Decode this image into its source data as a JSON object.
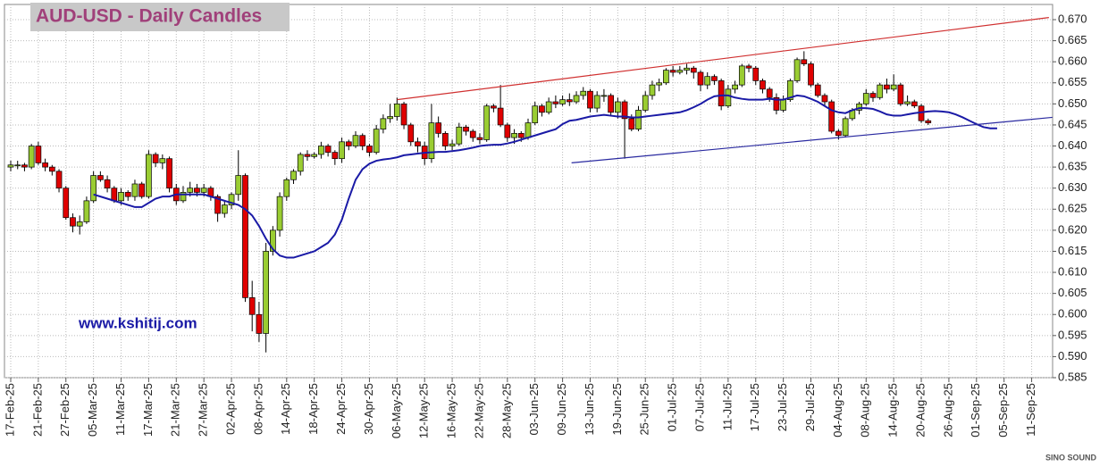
{
  "chart_data": {
    "type": "candlestick",
    "title": "AUD-USD - Daily Candles",
    "annotation": "www.kshitij.com",
    "watermark": "SINO SOUND",
    "grid": true,
    "up_color": "#9acd32",
    "down_color": "#e00000",
    "ylim": [
      0.585,
      0.67
    ],
    "yticks": [
      0.585,
      {
        "value": 0.59,
        "label": "0.590"
      },
      0.595,
      {
        "value": 0.6,
        "label": "0.600"
      },
      0.605,
      {
        "value": 0.61,
        "label": "0.610"
      },
      0.615,
      {
        "value": 0.62,
        "label": "0.620"
      },
      0.625,
      {
        "value": 0.63,
        "label": "0.630"
      },
      0.635,
      {
        "value": 0.64,
        "label": "0.640"
      },
      0.645,
      {
        "value": 0.65,
        "label": "0.650"
      },
      0.655,
      {
        "value": 0.66,
        "label": "0.660"
      },
      0.665,
      {
        "value": 0.67,
        "label": "0.670"
      }
    ],
    "categories": [
      "17-Feb-25",
      null,
      null,
      null,
      "21-Feb-25",
      null,
      null,
      null,
      "27-Feb-25",
      null,
      null,
      null,
      "05-Mar-25",
      null,
      null,
      null,
      "11-Mar-25",
      null,
      null,
      null,
      "17-Mar-25",
      null,
      null,
      null,
      "21-Mar-25",
      null,
      null,
      null,
      "27-Mar-25",
      null,
      null,
      null,
      "02-Apr-25",
      null,
      null,
      null,
      "08-Apr-25",
      null,
      null,
      null,
      "14-Apr-25",
      null,
      null,
      null,
      "18-Apr-25",
      null,
      null,
      null,
      "24-Apr-25",
      null,
      null,
      null,
      "30-Apr-25",
      null,
      null,
      null,
      "06-May-25",
      null,
      null,
      null,
      "12-May-25",
      null,
      null,
      null,
      "16-May-25",
      null,
      null,
      null,
      "22-May-25",
      null,
      null,
      null,
      "28-May-25",
      null,
      null,
      null,
      "03-Jun-25",
      null,
      null,
      null,
      "09-Jun-25",
      null,
      null,
      null,
      "13-Jun-25",
      null,
      null,
      null,
      "19-Jun-25",
      null,
      null,
      null,
      "25-Jun-25",
      null,
      null,
      null,
      "01-Jul-25",
      null,
      null,
      null,
      "07-Jul-25",
      null,
      null,
      null,
      "11-Jul-25",
      null,
      null,
      null,
      "17-Jul-25",
      null,
      null,
      null,
      "23-Jul-25",
      null,
      null,
      null,
      "29-Jul-25",
      null,
      null,
      null,
      "04-Aug-25",
      null,
      null,
      null,
      "08-Aug-25",
      null,
      null,
      null,
      "14-Aug-25",
      null,
      null,
      null,
      "20-Aug-25",
      null,
      null,
      null,
      "26-Aug-25",
      null,
      null,
      null,
      "01-Sep-25",
      null,
      null,
      null,
      "05-Sep-25",
      null,
      null,
      null,
      "11-Sep-25"
    ],
    "open": [
      0.635,
      0.6355,
      0.6355,
      0.635,
      0.64,
      0.636,
      0.635,
      0.634,
      0.63,
      0.623,
      0.621,
      0.622,
      0.627,
      0.633,
      0.632,
      0.63,
      0.627,
      0.629,
      0.628,
      0.631,
      0.628,
      0.638,
      0.636,
      0.637,
      0.63,
      0.627,
      0.629,
      0.63,
      0.629,
      0.63,
      0.628,
      0.624,
      0.626,
      0.6285,
      0.633,
      0.604,
      0.6,
      0.5955,
      0.615,
      0.62,
      0.628,
      0.632,
      0.634,
      0.638,
      0.6375,
      0.638,
      0.64,
      0.6385,
      0.637,
      0.641,
      0.64,
      0.6425,
      0.64,
      0.6385,
      0.644,
      0.6465,
      0.647,
      0.65,
      0.645,
      0.641,
      0.64,
      0.637,
      0.6455,
      0.643,
      0.64,
      0.6405,
      0.6445,
      0.6435,
      0.642,
      0.6415,
      0.6495,
      0.649,
      0.645,
      0.642,
      0.643,
      0.642,
      0.6455,
      0.6495,
      0.648,
      0.6505,
      0.65,
      0.651,
      0.6505,
      0.652,
      0.653,
      0.649,
      0.652,
      0.652,
      0.648,
      0.6505,
      0.6465,
      0.644,
      0.6485,
      0.652,
      0.6545,
      0.655,
      0.658,
      0.6575,
      0.658,
      0.6585,
      0.6575,
      0.6545,
      0.6565,
      0.6555,
      0.6495,
      0.6535,
      0.6545,
      0.659,
      0.6585,
      0.6555,
      0.6535,
      0.6515,
      0.6485,
      0.651,
      0.6555,
      0.6605,
      0.6595,
      0.6545,
      0.652,
      0.6505,
      0.6435,
      0.6425,
      0.6465,
      0.6485,
      0.65,
      0.6525,
      0.6515,
      0.6545,
      0.6535,
      0.6545,
      0.65,
      0.6505,
      0.6495,
      0.646,
      null,
      null,
      null,
      null,
      null,
      null,
      null,
      null,
      null,
      null,
      null,
      null,
      null,
      null,
      null
    ],
    "high": [
      0.6365,
      0.6365,
      0.636,
      0.6405,
      0.641,
      0.637,
      0.6355,
      0.6345,
      0.6305,
      0.624,
      0.6235,
      0.628,
      0.634,
      0.634,
      0.633,
      0.6305,
      0.63,
      0.6295,
      0.632,
      0.6315,
      0.639,
      0.6385,
      0.638,
      0.6375,
      0.631,
      0.6305,
      0.6315,
      0.631,
      0.631,
      0.6305,
      0.6285,
      0.627,
      0.629,
      0.639,
      0.6335,
      0.608,
      0.603,
      0.617,
      0.621,
      0.629,
      0.6325,
      0.6345,
      0.6385,
      0.639,
      0.6385,
      0.641,
      0.6405,
      0.639,
      0.642,
      0.6415,
      0.6435,
      0.643,
      0.6405,
      0.645,
      0.6475,
      0.65,
      0.6515,
      0.6505,
      0.6455,
      0.642,
      0.641,
      0.65,
      0.647,
      0.6435,
      0.6415,
      0.6455,
      0.645,
      0.644,
      0.643,
      0.65,
      0.65,
      0.6545,
      0.6455,
      0.644,
      0.6435,
      0.6465,
      0.6505,
      0.65,
      0.6515,
      0.652,
      0.652,
      0.6525,
      0.653,
      0.654,
      0.6535,
      0.653,
      0.6535,
      0.6525,
      0.6515,
      0.651,
      0.6475,
      0.6495,
      0.653,
      0.6555,
      0.656,
      0.6585,
      0.659,
      0.659,
      0.6595,
      0.659,
      0.658,
      0.6575,
      0.657,
      0.656,
      0.6545,
      0.6555,
      0.6595,
      0.6595,
      0.659,
      0.656,
      0.654,
      0.6525,
      0.652,
      0.656,
      0.661,
      0.6625,
      0.66,
      0.655,
      0.6525,
      0.651,
      0.644,
      0.647,
      0.649,
      0.6505,
      0.6535,
      0.653,
      0.655,
      0.656,
      0.657,
      0.655,
      0.652,
      0.651,
      0.65,
      0.6465,
      null,
      null,
      null,
      null,
      null,
      null,
      null,
      null,
      null,
      null,
      null,
      null,
      null,
      null,
      null
    ],
    "low": [
      0.634,
      0.6345,
      0.634,
      0.6345,
      0.6355,
      0.634,
      0.633,
      0.629,
      0.6225,
      0.6195,
      0.619,
      0.6215,
      0.6265,
      0.6315,
      0.629,
      0.6265,
      0.626,
      0.627,
      0.627,
      0.6275,
      0.6275,
      0.635,
      0.6345,
      0.629,
      0.626,
      0.6265,
      0.628,
      0.628,
      0.628,
      0.627,
      0.622,
      0.623,
      0.625,
      0.627,
      0.603,
      0.596,
      0.5935,
      0.591,
      0.614,
      0.6185,
      0.627,
      0.631,
      0.633,
      0.6365,
      0.637,
      0.637,
      0.6375,
      0.6355,
      0.636,
      0.639,
      0.6395,
      0.639,
      0.6375,
      0.638,
      0.643,
      0.6455,
      0.646,
      0.644,
      0.64,
      0.6385,
      0.6355,
      0.636,
      0.642,
      0.639,
      0.639,
      0.64,
      0.6425,
      0.641,
      0.6405,
      0.641,
      0.648,
      0.6445,
      0.641,
      0.6405,
      0.641,
      0.6415,
      0.645,
      0.647,
      0.6475,
      0.649,
      0.6495,
      0.6495,
      0.65,
      0.651,
      0.648,
      0.648,
      0.6505,
      0.647,
      0.6465,
      0.637,
      0.6435,
      0.6435,
      0.648,
      0.651,
      0.653,
      0.6545,
      0.6565,
      0.657,
      0.657,
      0.656,
      0.653,
      0.6535,
      0.6545,
      0.6485,
      0.649,
      0.6525,
      0.654,
      0.6575,
      0.6545,
      0.6525,
      0.6505,
      0.6475,
      0.648,
      0.6505,
      0.655,
      0.659,
      0.654,
      0.6515,
      0.6495,
      0.643,
      0.6415,
      0.642,
      0.646,
      0.6475,
      0.6495,
      0.6505,
      0.651,
      0.6525,
      0.653,
      0.6495,
      0.6495,
      0.649,
      0.6455,
      0.645,
      null,
      null,
      null,
      null,
      null,
      null,
      null,
      null,
      null,
      null,
      null,
      null,
      null,
      null,
      null
    ],
    "close": [
      0.6355,
      0.6355,
      0.635,
      0.64,
      0.636,
      0.635,
      0.634,
      0.63,
      0.623,
      0.621,
      0.622,
      0.627,
      0.633,
      0.632,
      0.63,
      0.627,
      0.629,
      0.628,
      0.631,
      0.628,
      0.638,
      0.636,
      0.637,
      0.63,
      0.627,
      0.629,
      0.63,
      0.629,
      0.63,
      0.628,
      0.624,
      0.626,
      0.6285,
      0.633,
      0.604,
      0.6,
      0.5955,
      0.615,
      0.62,
      0.628,
      0.632,
      0.634,
      0.638,
      0.6375,
      0.638,
      0.64,
      0.6385,
      0.637,
      0.641,
      0.64,
      0.6425,
      0.64,
      0.6385,
      0.644,
      0.6465,
      0.647,
      0.65,
      0.645,
      0.641,
      0.64,
      0.637,
      0.6455,
      0.643,
      0.64,
      0.6405,
      0.6445,
      0.6435,
      0.642,
      0.6415,
      0.6495,
      0.649,
      0.645,
      0.642,
      0.643,
      0.642,
      0.6455,
      0.6495,
      0.648,
      0.6505,
      0.65,
      0.651,
      0.6505,
      0.652,
      0.653,
      0.649,
      0.652,
      0.652,
      0.648,
      0.6505,
      0.6465,
      0.644,
      0.6485,
      0.652,
      0.6545,
      0.655,
      0.658,
      0.6575,
      0.658,
      0.6585,
      0.6575,
      0.6545,
      0.6565,
      0.6555,
      0.6495,
      0.6535,
      0.6545,
      0.659,
      0.6585,
      0.6555,
      0.6535,
      0.6515,
      0.6485,
      0.651,
      0.6555,
      0.6605,
      0.6595,
      0.6545,
      0.652,
      0.6505,
      0.6435,
      0.6425,
      0.6465,
      0.6485,
      0.65,
      0.6525,
      0.6515,
      0.6545,
      0.6535,
      0.6545,
      0.65,
      0.6505,
      0.6495,
      0.646,
      0.6455,
      null,
      null,
      null,
      null,
      null,
      null,
      null,
      null,
      null,
      null,
      null,
      null,
      null,
      null,
      null
    ],
    "moving_average": {
      "color": "#1a1aa6",
      "values": [
        null,
        null,
        null,
        null,
        null,
        null,
        null,
        null,
        null,
        null,
        null,
        null,
        0.6285,
        0.628,
        0.6275,
        0.627,
        0.6265,
        0.626,
        0.6255,
        0.6255,
        0.6265,
        0.6275,
        0.628,
        0.628,
        0.6285,
        0.6285,
        0.6285,
        0.6285,
        0.6285,
        0.628,
        0.6275,
        0.627,
        0.6265,
        0.626,
        0.625,
        0.6235,
        0.621,
        0.618,
        0.6155,
        0.614,
        0.6135,
        0.6135,
        0.614,
        0.6145,
        0.615,
        0.616,
        0.617,
        0.619,
        0.6225,
        0.6275,
        0.632,
        0.6345,
        0.6358,
        0.6365,
        0.6368,
        0.637,
        0.6373,
        0.6378,
        0.638,
        0.6382,
        0.6384,
        0.6385,
        0.6386,
        0.6386,
        0.6388,
        0.639,
        0.6393,
        0.6396,
        0.64,
        0.6402,
        0.6403,
        0.6403,
        0.6406,
        0.641,
        0.6415,
        0.642,
        0.6425,
        0.643,
        0.6435,
        0.644,
        0.6452,
        0.646,
        0.6462,
        0.6466,
        0.647,
        0.6472,
        0.6474,
        0.6472,
        0.647,
        0.647,
        0.6468,
        0.6468,
        0.647,
        0.6472,
        0.6474,
        0.6476,
        0.6478,
        0.648,
        0.6485,
        0.6492,
        0.65,
        0.651,
        0.6518,
        0.652,
        0.652,
        0.6515,
        0.6512,
        0.651,
        0.651,
        0.651,
        0.6512,
        0.651,
        0.651,
        0.6515,
        0.652,
        0.6518,
        0.6512,
        0.6505,
        0.6495,
        0.6485,
        0.648,
        0.6478,
        0.6485,
        0.649,
        0.649,
        0.6488,
        0.6482,
        0.6475,
        0.6472,
        0.6472,
        0.6475,
        0.6478,
        0.648,
        0.6482,
        0.6483,
        0.6482,
        0.648,
        0.6475,
        0.6468,
        0.646,
        0.6452,
        0.6445,
        0.6442,
        0.6442,
        null,
        null,
        null,
        null,
        null
      ]
    },
    "trendlines": [
      {
        "color": "#d03030",
        "x": [
          56,
          150.5
        ],
        "values": [
          0.651,
          0.6705
        ]
      },
      {
        "color": "#2a2aa0",
        "x": [
          81.3,
          151
        ],
        "values": [
          0.636,
          0.6468
        ]
      }
    ]
  }
}
